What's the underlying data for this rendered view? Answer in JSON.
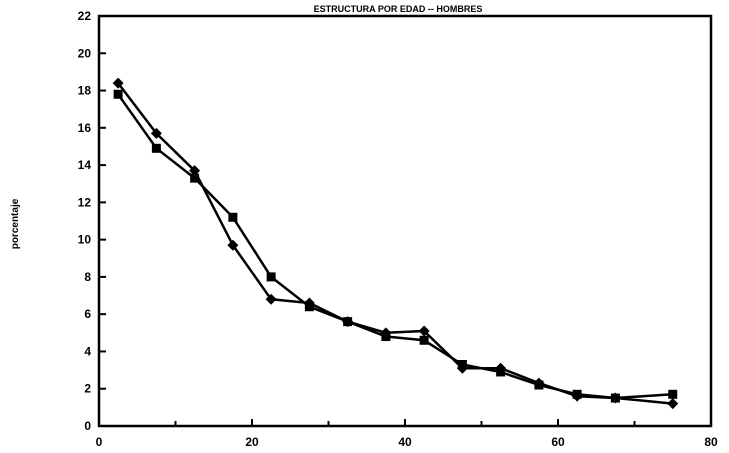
{
  "chart_data": {
    "type": "line",
    "title": "ESTRUCTURA POR EDAD -- HOMBRES",
    "xlabel": "",
    "ylabel": "porcentaje",
    "xlim": [
      0,
      80
    ],
    "ylim": [
      0,
      22
    ],
    "xticks": [
      0,
      20,
      40,
      60,
      80
    ],
    "yticks": [
      0,
      2,
      4,
      6,
      8,
      10,
      12,
      14,
      16,
      18,
      20,
      22
    ],
    "grid": false,
    "legend": "none",
    "series": [
      {
        "marker": "diamond",
        "color": "#000000",
        "points": [
          [
            2.5,
            18.4
          ],
          [
            7.5,
            15.7
          ],
          [
            12.5,
            13.7
          ],
          [
            17.5,
            9.7
          ],
          [
            22.5,
            6.8
          ],
          [
            27.5,
            6.6
          ],
          [
            32.5,
            5.6
          ],
          [
            37.5,
            5.0
          ],
          [
            42.5,
            5.1
          ],
          [
            47.5,
            3.1
          ],
          [
            52.5,
            3.1
          ],
          [
            57.5,
            2.3
          ],
          [
            62.5,
            1.6
          ],
          [
            67.5,
            1.5
          ],
          [
            75,
            1.2
          ]
        ]
      },
      {
        "marker": "square",
        "color": "#000000",
        "points": [
          [
            2.5,
            17.8
          ],
          [
            7.5,
            14.9
          ],
          [
            12.5,
            13.3
          ],
          [
            17.5,
            11.2
          ],
          [
            22.5,
            8.0
          ],
          [
            27.5,
            6.4
          ],
          [
            32.5,
            5.6
          ],
          [
            37.5,
            4.8
          ],
          [
            42.5,
            4.6
          ],
          [
            47.5,
            3.3
          ],
          [
            52.5,
            2.9
          ],
          [
            57.5,
            2.2
          ],
          [
            62.5,
            1.7
          ],
          [
            67.5,
            1.5
          ],
          [
            75,
            1.7
          ]
        ]
      }
    ]
  }
}
